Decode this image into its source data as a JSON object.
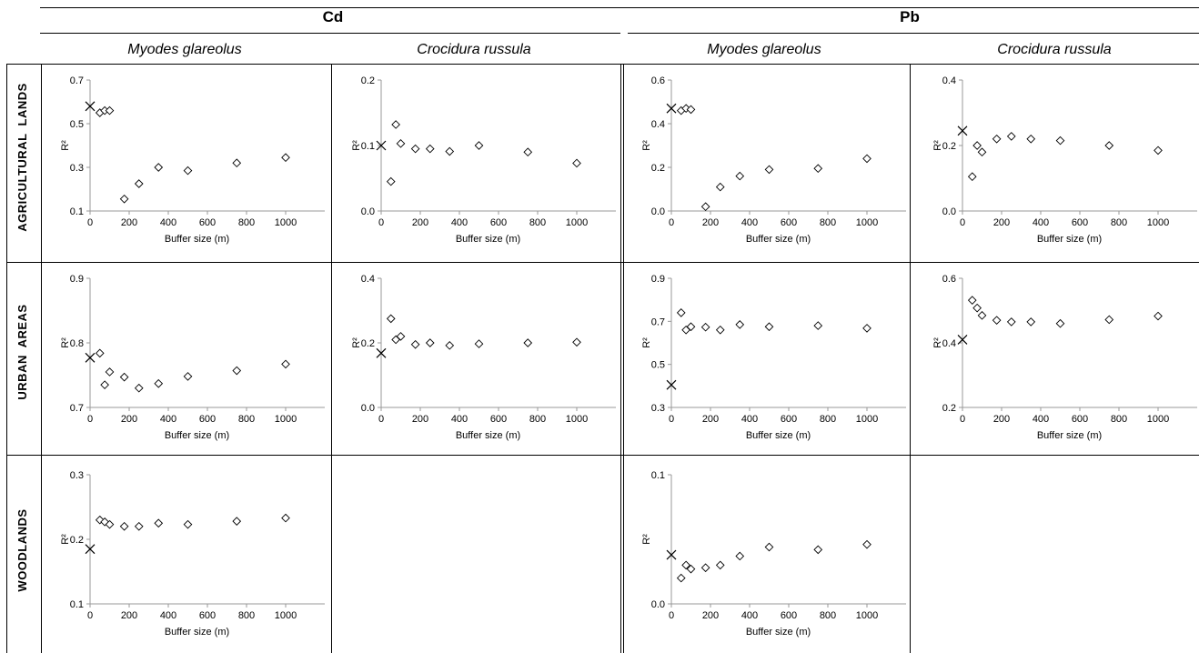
{
  "header": {
    "metals": [
      "Cd",
      "Pb"
    ],
    "species": [
      "Myodes glareolus",
      "Crocidura russula",
      "Myodes glareolus",
      "Crocidura russula"
    ],
    "rows": [
      "AGRICULTURAL  LANDS",
      "URBAN  AREAS",
      "WOODLANDS"
    ]
  },
  "chart_data": [
    {
      "type": "scatter",
      "row": 0,
      "col": 0,
      "metal": "Cd",
      "species": "Myodes glareolus",
      "habitat": "AGRICULTURAL  LANDS",
      "xlabel": "Buffer size (m)",
      "ylabel": "R²",
      "xlim": [
        0,
        1200
      ],
      "xticks": [
        0,
        200,
        400,
        600,
        800,
        1000
      ],
      "ylim": [
        0.1,
        0.7
      ],
      "yticks": [
        0.1,
        0.3,
        0.5,
        0.7
      ],
      "ydecimals": 1,
      "cross": {
        "x": 0,
        "y": 0.58
      },
      "x": [
        50,
        75,
        100,
        175,
        250,
        350,
        500,
        750,
        1000
      ],
      "y": [
        0.55,
        0.56,
        0.56,
        0.155,
        0.225,
        0.3,
        0.285,
        0.32,
        0.345
      ]
    },
    {
      "type": "scatter",
      "row": 0,
      "col": 1,
      "metal": "Cd",
      "species": "Crocidura russula",
      "habitat": "AGRICULTURAL  LANDS",
      "xlabel": "Buffer size (m)",
      "ylabel": "R²",
      "xlim": [
        0,
        1200
      ],
      "xticks": [
        0,
        200,
        400,
        600,
        800,
        1000
      ],
      "ylim": [
        0.0,
        0.2
      ],
      "yticks": [
        0.0,
        0.1,
        0.2
      ],
      "ydecimals": 1,
      "cross": {
        "x": 0,
        "y": 0.1
      },
      "x": [
        50,
        75,
        100,
        175,
        250,
        350,
        500,
        750,
        1000
      ],
      "y": [
        0.045,
        0.132,
        0.103,
        0.095,
        0.095,
        0.091,
        0.1,
        0.09,
        0.073
      ]
    },
    {
      "type": "scatter",
      "row": 0,
      "col": 2,
      "metal": "Pb",
      "species": "Myodes glareolus",
      "habitat": "AGRICULTURAL  LANDS",
      "xlabel": "Buffer size (m)",
      "ylabel": "R²",
      "xlim": [
        0,
        1200
      ],
      "xticks": [
        0,
        200,
        400,
        600,
        800,
        1000
      ],
      "ylim": [
        0.0,
        0.6
      ],
      "yticks": [
        0.0,
        0.2,
        0.4,
        0.6
      ],
      "ydecimals": 1,
      "cross": {
        "x": 0,
        "y": 0.47
      },
      "x": [
        50,
        75,
        100,
        175,
        250,
        350,
        500,
        750,
        1000
      ],
      "y": [
        0.46,
        0.47,
        0.465,
        0.02,
        0.11,
        0.16,
        0.19,
        0.195,
        0.24
      ]
    },
    {
      "type": "scatter",
      "row": 0,
      "col": 3,
      "metal": "Pb",
      "species": "Crocidura russula",
      "habitat": "AGRICULTURAL  LANDS",
      "xlabel": "Buffer size (m)",
      "ylabel": "R²",
      "xlim": [
        0,
        1200
      ],
      "xticks": [
        0,
        200,
        400,
        600,
        800,
        1000
      ],
      "ylim": [
        0.0,
        0.4
      ],
      "yticks": [
        0.0,
        0.2,
        0.4
      ],
      "ydecimals": 1,
      "cross": {
        "x": 0,
        "y": 0.245
      },
      "x": [
        50,
        75,
        100,
        175,
        250,
        350,
        500,
        750,
        1000
      ],
      "y": [
        0.105,
        0.2,
        0.18,
        0.22,
        0.228,
        0.22,
        0.215,
        0.2,
        0.185
      ]
    },
    {
      "type": "scatter",
      "row": 1,
      "col": 0,
      "metal": "Cd",
      "species": "Myodes glareolus",
      "habitat": "URBAN  AREAS",
      "xlabel": "Buffer size (m)",
      "ylabel": "R²",
      "xlim": [
        0,
        1200
      ],
      "xticks": [
        0,
        200,
        400,
        600,
        800,
        1000
      ],
      "ylim": [
        0.7,
        0.9
      ],
      "yticks": [
        0.7,
        0.8,
        0.9
      ],
      "ydecimals": 1,
      "cross": {
        "x": 0,
        "y": 0.777
      },
      "x": [
        50,
        75,
        100,
        175,
        250,
        350,
        500,
        750,
        1000
      ],
      "y": [
        0.784,
        0.735,
        0.755,
        0.747,
        0.73,
        0.737,
        0.748,
        0.757,
        0.767
      ]
    },
    {
      "type": "scatter",
      "row": 1,
      "col": 1,
      "metal": "Cd",
      "species": "Crocidura russula",
      "habitat": "URBAN  AREAS",
      "xlabel": "Buffer size (m)",
      "ylabel": "R²",
      "xlim": [
        0,
        1200
      ],
      "xticks": [
        0,
        200,
        400,
        600,
        800,
        1000
      ],
      "ylim": [
        0.0,
        0.4
      ],
      "yticks": [
        0.0,
        0.2,
        0.4
      ],
      "ydecimals": 1,
      "cross": {
        "x": 0,
        "y": 0.168
      },
      "x": [
        50,
        75,
        100,
        175,
        250,
        350,
        500,
        750,
        1000
      ],
      "y": [
        0.275,
        0.21,
        0.22,
        0.195,
        0.2,
        0.192,
        0.197,
        0.2,
        0.202
      ]
    },
    {
      "type": "scatter",
      "row": 1,
      "col": 2,
      "metal": "Pb",
      "species": "Myodes glareolus",
      "habitat": "URBAN  AREAS",
      "xlabel": "Buffer size (m)",
      "ylabel": "R²",
      "xlim": [
        0,
        1200
      ],
      "xticks": [
        0,
        200,
        400,
        600,
        800,
        1000
      ],
      "ylim": [
        0.3,
        0.9
      ],
      "yticks": [
        0.3,
        0.5,
        0.7,
        0.9
      ],
      "ydecimals": 1,
      "cross": {
        "x": 0,
        "y": 0.405
      },
      "x": [
        50,
        75,
        100,
        175,
        250,
        350,
        500,
        750,
        1000
      ],
      "y": [
        0.74,
        0.66,
        0.675,
        0.673,
        0.66,
        0.685,
        0.675,
        0.68,
        0.668
      ]
    },
    {
      "type": "scatter",
      "row": 1,
      "col": 3,
      "metal": "Pb",
      "species": "Crocidura russula",
      "habitat": "URBAN  AREAS",
      "xlabel": "Buffer size (m)",
      "ylabel": "R²",
      "xlim": [
        0,
        1200
      ],
      "xticks": [
        0,
        200,
        400,
        600,
        800,
        1000
      ],
      "ylim": [
        0.2,
        0.6
      ],
      "yticks": [
        0.2,
        0.4,
        0.6
      ],
      "ydecimals": 1,
      "cross": {
        "x": 0,
        "y": 0.41
      },
      "x": [
        50,
        75,
        100,
        175,
        250,
        350,
        500,
        750,
        1000
      ],
      "y": [
        0.532,
        0.508,
        0.485,
        0.47,
        0.465,
        0.465,
        0.46,
        0.472,
        0.483
      ]
    },
    {
      "type": "scatter",
      "row": 2,
      "col": 0,
      "metal": "Cd",
      "species": "Myodes glareolus",
      "habitat": "WOODLANDS",
      "xlabel": "Buffer size (m)",
      "ylabel": "R²",
      "xlim": [
        0,
        1200
      ],
      "xticks": [
        0,
        200,
        400,
        600,
        800,
        1000
      ],
      "ylim": [
        0.1,
        0.3
      ],
      "yticks": [
        0.1,
        0.2,
        0.3
      ],
      "ydecimals": 1,
      "cross": {
        "x": 0,
        "y": 0.185
      },
      "x": [
        50,
        75,
        100,
        175,
        250,
        350,
        500,
        750,
        1000
      ],
      "y": [
        0.23,
        0.227,
        0.223,
        0.22,
        0.22,
        0.225,
        0.223,
        0.228,
        0.233
      ]
    },
    {
      "type": "scatter",
      "row": 2,
      "col": 2,
      "metal": "Pb",
      "species": "Myodes glareolus",
      "habitat": "WOODLANDS",
      "xlabel": "Buffer size (m)",
      "ylabel": "R²",
      "xlim": [
        0,
        1200
      ],
      "xticks": [
        0,
        200,
        400,
        600,
        800,
        1000
      ],
      "ylim": [
        0.0,
        0.1
      ],
      "yticks": [
        0.0,
        0.1
      ],
      "ydecimals": 1,
      "cross": {
        "x": 0,
        "y": 0.038
      },
      "x": [
        50,
        75,
        100,
        175,
        250,
        350,
        500,
        750,
        1000
      ],
      "y": [
        0.02,
        0.03,
        0.027,
        0.028,
        0.03,
        0.037,
        0.044,
        0.042,
        0.046
      ]
    }
  ]
}
